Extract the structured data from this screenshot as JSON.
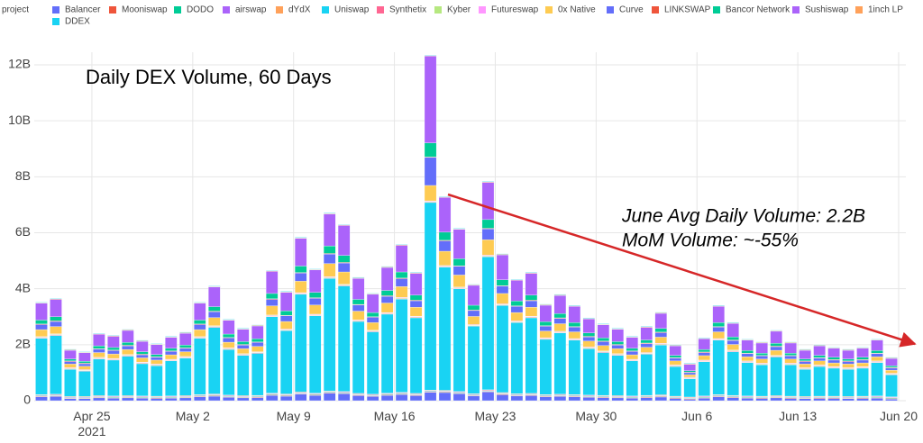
{
  "chart_data": {
    "type": "stacked_bar",
    "title": "Daily DEX Volume, 60 Days",
    "annotations": [
      "June Avg Daily Volume: 2.2B",
      "MoM Volume: ~-55%"
    ],
    "legend_title": "project",
    "x": [
      "2021-04-21",
      "2021-04-22",
      "2021-04-23",
      "2021-04-24",
      "2021-04-25",
      "2021-04-26",
      "2021-04-27",
      "2021-04-28",
      "2021-04-29",
      "2021-04-30",
      "2021-05-01",
      "2021-05-02",
      "2021-05-03",
      "2021-05-04",
      "2021-05-05",
      "2021-05-06",
      "2021-05-07",
      "2021-05-08",
      "2021-05-09",
      "2021-05-10",
      "2021-05-11",
      "2021-05-12",
      "2021-05-13",
      "2021-05-14",
      "2021-05-15",
      "2021-05-16",
      "2021-05-17",
      "2021-05-18",
      "2021-05-19",
      "2021-05-20",
      "2021-05-21",
      "2021-05-22",
      "2021-05-23",
      "2021-05-24",
      "2021-05-25",
      "2021-05-26",
      "2021-05-27",
      "2021-05-28",
      "2021-05-29",
      "2021-05-30",
      "2021-05-31",
      "2021-06-01",
      "2021-06-02",
      "2021-06-03",
      "2021-06-04",
      "2021-06-05",
      "2021-06-06",
      "2021-06-07",
      "2021-06-08",
      "2021-06-09",
      "2021-06-10",
      "2021-06-11",
      "2021-06-12",
      "2021-06-13",
      "2021-06-14",
      "2021-06-15",
      "2021-06-16",
      "2021-06-17",
      "2021-06-18",
      "2021-06-19"
    ],
    "xlim": [
      "2021-04-21",
      "2021-06-20"
    ],
    "xticks": [
      {
        "value": "2021-04-25",
        "label": "Apr 25\n2021"
      },
      {
        "value": "2021-05-02",
        "label": "May 2"
      },
      {
        "value": "2021-05-09",
        "label": "May 9"
      },
      {
        "value": "2021-05-16",
        "label": "May 16"
      },
      {
        "value": "2021-05-23",
        "label": "May 23"
      },
      {
        "value": "2021-05-30",
        "label": "May 30"
      },
      {
        "value": "2021-06-06",
        "label": "Jun 6"
      },
      {
        "value": "2021-06-13",
        "label": "Jun 13"
      },
      {
        "value": "2021-06-20",
        "label": "Jun 20"
      }
    ],
    "ylim": [
      0,
      12.45
    ],
    "yticks": [
      0,
      {
        "value": 2,
        "label": "2B"
      },
      {
        "value": 4,
        "label": "4B"
      },
      {
        "value": 6,
        "label": "6B"
      },
      {
        "value": 8,
        "label": "8B"
      },
      {
        "value": 10,
        "label": "10B"
      },
      {
        "value": 12,
        "label": "12B"
      }
    ],
    "grid": true,
    "series": [
      {
        "name": "Balancer",
        "color": "#636efa",
        "values": [
          0.14,
          0.15,
          0.07,
          0.07,
          0.1,
          0.09,
          0.1,
          0.09,
          0.08,
          0.09,
          0.1,
          0.14,
          0.16,
          0.12,
          0.1,
          0.11,
          0.19,
          0.16,
          0.23,
          0.19,
          0.27,
          0.25,
          0.18,
          0.15,
          0.19,
          0.22,
          0.18,
          0.3,
          0.29,
          0.25,
          0.17,
          0.31,
          0.21,
          0.17,
          0.18,
          0.14,
          0.15,
          0.14,
          0.12,
          0.11,
          0.1,
          0.09,
          0.11,
          0.13,
          0.08,
          0.05,
          0.09,
          0.14,
          0.11,
          0.09,
          0.08,
          0.1,
          0.08,
          0.07,
          0.08,
          0.08,
          0.07,
          0.08,
          0.09,
          0.06
        ]
      },
      {
        "name": "Mooniswap",
        "color": "#EF553B",
        "values": [
          0.02,
          0.02,
          0.02,
          0.02,
          0.02,
          0.02,
          0.02,
          0.02,
          0.02,
          0.02,
          0.02,
          0.02,
          0.02,
          0.02,
          0.02,
          0.02,
          0.02,
          0.02,
          0.02,
          0.02,
          0.02,
          0.02,
          0.02,
          0.02,
          0.02,
          0.02,
          0.02,
          0.02,
          0.02,
          0.02,
          0.02,
          0.02,
          0.02,
          0.02,
          0.02,
          0.02,
          0.02,
          0.02,
          0.02,
          0.02,
          0.02,
          0.02,
          0.02,
          0.02,
          0.02,
          0.02,
          0.02,
          0.02,
          0.02,
          0.02,
          0.02,
          0.02,
          0.02,
          0.02,
          0.02,
          0.02,
          0.02,
          0.02,
          0.02,
          0.02
        ]
      },
      {
        "name": "DODO",
        "color": "#00cc96",
        "values": [
          0.02,
          0.02,
          0.02,
          0.02,
          0.02,
          0.02,
          0.02,
          0.02,
          0.02,
          0.02,
          0.02,
          0.02,
          0.02,
          0.02,
          0.02,
          0.02,
          0.02,
          0.02,
          0.02,
          0.02,
          0.02,
          0.02,
          0.02,
          0.02,
          0.02,
          0.02,
          0.02,
          0.02,
          0.02,
          0.02,
          0.02,
          0.02,
          0.02,
          0.02,
          0.02,
          0.02,
          0.02,
          0.02,
          0.02,
          0.02,
          0.02,
          0.02,
          0.02,
          0.02,
          0.02,
          0.02,
          0.02,
          0.02,
          0.02,
          0.02,
          0.02,
          0.02,
          0.02,
          0.02,
          0.02,
          0.02,
          0.02,
          0.02,
          0.02,
          0.02
        ]
      },
      {
        "name": "airswap",
        "color": "#ab63fa",
        "values": [
          0.02,
          0.02,
          0.02,
          0.02,
          0.02,
          0.02,
          0.02,
          0.02,
          0.02,
          0.02,
          0.02,
          0.02,
          0.02,
          0.02,
          0.02,
          0.02,
          0.02,
          0.02,
          0.02,
          0.02,
          0.02,
          0.02,
          0.02,
          0.02,
          0.02,
          0.02,
          0.02,
          0.02,
          0.02,
          0.02,
          0.02,
          0.02,
          0.02,
          0.02,
          0.02,
          0.02,
          0.02,
          0.02,
          0.02,
          0.02,
          0.02,
          0.02,
          0.02,
          0.02,
          0.02,
          0.02,
          0.02,
          0.02,
          0.02,
          0.02,
          0.02,
          0.02,
          0.02,
          0.02,
          0.02,
          0.02,
          0.02,
          0.02,
          0.02,
          0.02
        ]
      },
      {
        "name": "dYdX",
        "color": "#FFA15A",
        "values": [
          0.02,
          0.02,
          0.02,
          0.02,
          0.02,
          0.02,
          0.02,
          0.02,
          0.02,
          0.02,
          0.02,
          0.02,
          0.02,
          0.02,
          0.02,
          0.02,
          0.02,
          0.02,
          0.02,
          0.02,
          0.02,
          0.02,
          0.02,
          0.02,
          0.02,
          0.02,
          0.02,
          0.02,
          0.02,
          0.02,
          0.02,
          0.02,
          0.02,
          0.02,
          0.02,
          0.02,
          0.02,
          0.02,
          0.02,
          0.02,
          0.02,
          0.02,
          0.02,
          0.02,
          0.02,
          0.02,
          0.02,
          0.02,
          0.02,
          0.02,
          0.02,
          0.02,
          0.02,
          0.02,
          0.02,
          0.02,
          0.02,
          0.02,
          0.02,
          0.02
        ]
      },
      {
        "name": "Uniswap",
        "color": "#19d3f3",
        "values": [
          2.01,
          2.1,
          0.97,
          0.9,
          1.31,
          1.28,
          1.41,
          1.15,
          1.09,
          1.25,
          1.34,
          2.01,
          2.38,
          1.63,
          1.44,
          1.5,
          2.73,
          2.26,
          3.49,
          2.76,
          4.02,
          3.77,
          2.57,
          2.23,
          2.82,
          3.33,
          2.7,
          6.7,
          4.4,
          3.67,
          2.41,
          4.75,
          3.11,
          2.54,
          2.7,
          1.97,
          2.19,
          1.94,
          1.66,
          1.53,
          1.44,
          1.25,
          1.47,
          1.78,
          1.06,
          0.65,
          1.22,
          1.94,
          1.56,
          1.19,
          1.12,
          1.38,
          1.12,
          0.97,
          1.06,
          1.0,
          0.97,
          1.0,
          1.19,
          0.78
        ]
      },
      {
        "name": "Synthetix",
        "color": "#FF6692",
        "values": [
          0.02,
          0.02,
          0.02,
          0.02,
          0.02,
          0.02,
          0.02,
          0.02,
          0.02,
          0.02,
          0.02,
          0.02,
          0.02,
          0.02,
          0.02,
          0.02,
          0.02,
          0.02,
          0.02,
          0.02,
          0.02,
          0.02,
          0.02,
          0.02,
          0.02,
          0.02,
          0.02,
          0.02,
          0.02,
          0.02,
          0.02,
          0.02,
          0.02,
          0.02,
          0.02,
          0.02,
          0.02,
          0.02,
          0.02,
          0.02,
          0.02,
          0.02,
          0.02,
          0.02,
          0.02,
          0.02,
          0.02,
          0.02,
          0.02,
          0.02,
          0.02,
          0.02,
          0.02,
          0.02,
          0.02,
          0.02,
          0.02,
          0.02,
          0.02,
          0.02
        ]
      },
      {
        "name": "Kyber",
        "color": "#B6E880",
        "values": [
          0.02,
          0.02,
          0.02,
          0.02,
          0.02,
          0.02,
          0.02,
          0.02,
          0.02,
          0.02,
          0.02,
          0.02,
          0.02,
          0.02,
          0.02,
          0.02,
          0.02,
          0.02,
          0.02,
          0.02,
          0.02,
          0.02,
          0.02,
          0.02,
          0.02,
          0.02,
          0.02,
          0.02,
          0.02,
          0.02,
          0.02,
          0.02,
          0.02,
          0.02,
          0.02,
          0.02,
          0.02,
          0.02,
          0.02,
          0.02,
          0.02,
          0.02,
          0.02,
          0.02,
          0.02,
          0.02,
          0.02,
          0.02,
          0.02,
          0.02,
          0.02,
          0.02,
          0.02,
          0.02,
          0.02,
          0.02,
          0.02,
          0.02,
          0.02,
          0.02
        ]
      },
      {
        "name": "Futureswap",
        "color": "#FF97FF",
        "values": [
          0.02,
          0.02,
          0.02,
          0.02,
          0.02,
          0.02,
          0.02,
          0.02,
          0.02,
          0.02,
          0.02,
          0.02,
          0.02,
          0.02,
          0.02,
          0.02,
          0.02,
          0.02,
          0.02,
          0.02,
          0.02,
          0.02,
          0.02,
          0.02,
          0.02,
          0.02,
          0.02,
          0.02,
          0.02,
          0.02,
          0.02,
          0.02,
          0.02,
          0.02,
          0.02,
          0.02,
          0.02,
          0.02,
          0.02,
          0.02,
          0.02,
          0.02,
          0.02,
          0.02,
          0.02,
          0.02,
          0.02,
          0.02,
          0.02,
          0.02,
          0.02,
          0.02,
          0.02,
          0.02,
          0.02,
          0.02,
          0.02,
          0.02,
          0.02,
          0.02
        ]
      },
      {
        "name": "0x Native",
        "color": "#FECB52",
        "values": [
          0.25,
          0.26,
          0.13,
          0.12,
          0.17,
          0.16,
          0.18,
          0.15,
          0.14,
          0.16,
          0.17,
          0.25,
          0.29,
          0.2,
          0.18,
          0.19,
          0.33,
          0.27,
          0.41,
          0.33,
          0.47,
          0.44,
          0.31,
          0.27,
          0.34,
          0.39,
          0.32,
          0.55,
          0.51,
          0.43,
          0.29,
          0.55,
          0.37,
          0.3,
          0.32,
          0.24,
          0.27,
          0.24,
          0.21,
          0.19,
          0.18,
          0.16,
          0.19,
          0.22,
          0.14,
          0.09,
          0.16,
          0.24,
          0.2,
          0.15,
          0.15,
          0.18,
          0.15,
          0.13,
          0.14,
          0.13,
          0.13,
          0.13,
          0.15,
          0.11
        ]
      },
      {
        "name": "Curve",
        "color": "#636efa",
        "values": [
          0.18,
          0.18,
          0.09,
          0.09,
          0.12,
          0.12,
          0.13,
          0.11,
          0.1,
          0.12,
          0.12,
          0.18,
          0.21,
          0.15,
          0.13,
          0.14,
          0.23,
          0.2,
          0.29,
          0.24,
          0.34,
          0.32,
          0.22,
          0.19,
          0.24,
          0.28,
          0.23,
          1.0,
          0.37,
          0.31,
          0.21,
          0.39,
          0.26,
          0.22,
          0.23,
          0.17,
          0.19,
          0.17,
          0.15,
          0.14,
          0.13,
          0.12,
          0.13,
          0.16,
          0.1,
          0.07,
          0.11,
          0.17,
          0.14,
          0.11,
          0.11,
          0.13,
          0.11,
          0.09,
          0.1,
          0.1,
          0.09,
          0.1,
          0.11,
          0.08
        ]
      },
      {
        "name": "LINKSWAP",
        "color": "#EF553B",
        "values": [
          0.02,
          0.02,
          0.02,
          0.02,
          0.02,
          0.02,
          0.02,
          0.02,
          0.02,
          0.02,
          0.02,
          0.02,
          0.02,
          0.02,
          0.02,
          0.02,
          0.02,
          0.02,
          0.02,
          0.02,
          0.02,
          0.02,
          0.02,
          0.02,
          0.02,
          0.02,
          0.02,
          0.02,
          0.02,
          0.02,
          0.02,
          0.02,
          0.02,
          0.02,
          0.02,
          0.02,
          0.02,
          0.02,
          0.02,
          0.02,
          0.02,
          0.02,
          0.02,
          0.02,
          0.02,
          0.02,
          0.02,
          0.02,
          0.02,
          0.02,
          0.02,
          0.02,
          0.02,
          0.02,
          0.02,
          0.02,
          0.02,
          0.02,
          0.02,
          0.02
        ]
      },
      {
        "name": "Bancor Network",
        "color": "#00cc96",
        "values": [
          0.14,
          0.15,
          0.07,
          0.07,
          0.1,
          0.09,
          0.1,
          0.09,
          0.08,
          0.09,
          0.1,
          0.14,
          0.16,
          0.12,
          0.1,
          0.11,
          0.19,
          0.16,
          0.23,
          0.19,
          0.27,
          0.25,
          0.18,
          0.15,
          0.19,
          0.22,
          0.18,
          0.5,
          0.29,
          0.25,
          0.17,
          0.31,
          0.21,
          0.17,
          0.18,
          0.14,
          0.15,
          0.14,
          0.12,
          0.11,
          0.1,
          0.09,
          0.11,
          0.13,
          0.08,
          0.05,
          0.09,
          0.14,
          0.11,
          0.09,
          0.08,
          0.1,
          0.08,
          0.07,
          0.08,
          0.08,
          0.07,
          0.08,
          0.09,
          0.06
        ]
      },
      {
        "name": "Sushiswap",
        "color": "#ab63fa",
        "values": [
          0.6,
          0.62,
          0.31,
          0.3,
          0.41,
          0.4,
          0.43,
          0.37,
          0.35,
          0.39,
          0.42,
          0.6,
          0.7,
          0.49,
          0.44,
          0.46,
          0.79,
          0.66,
          0.99,
          0.8,
          1.14,
          1.07,
          0.75,
          0.65,
          0.82,
          0.95,
          0.78,
          3.1,
          1.24,
          1.05,
          0.71,
          1.33,
          0.89,
          0.74,
          0.78,
          0.59,
          0.65,
          0.58,
          0.5,
          0.47,
          0.44,
          0.39,
          0.45,
          0.54,
          0.34,
          0.23,
          0.38,
          0.58,
          0.48,
          0.37,
          0.36,
          0.43,
          0.36,
          0.31,
          0.34,
          0.32,
          0.31,
          0.32,
          0.37,
          0.26
        ]
      },
      {
        "name": "1inch LP",
        "color": "#FFA15A",
        "values": [
          0.02,
          0.02,
          0.02,
          0.02,
          0.02,
          0.02,
          0.02,
          0.02,
          0.02,
          0.02,
          0.02,
          0.02,
          0.02,
          0.02,
          0.02,
          0.02,
          0.02,
          0.02,
          0.02,
          0.02,
          0.02,
          0.02,
          0.02,
          0.02,
          0.02,
          0.02,
          0.02,
          0.02,
          0.02,
          0.02,
          0.02,
          0.02,
          0.02,
          0.02,
          0.02,
          0.02,
          0.02,
          0.02,
          0.02,
          0.02,
          0.02,
          0.02,
          0.02,
          0.02,
          0.02,
          0.02,
          0.02,
          0.02,
          0.02,
          0.02,
          0.02,
          0.02,
          0.02,
          0.02,
          0.02,
          0.02,
          0.02,
          0.02,
          0.02,
          0.02
        ]
      },
      {
        "name": "DDEX",
        "color": "#19d3f3",
        "values": [
          0.02,
          0.02,
          0.02,
          0.02,
          0.02,
          0.02,
          0.02,
          0.02,
          0.02,
          0.02,
          0.02,
          0.02,
          0.02,
          0.02,
          0.02,
          0.02,
          0.02,
          0.02,
          0.02,
          0.02,
          0.02,
          0.02,
          0.02,
          0.02,
          0.02,
          0.02,
          0.02,
          0.02,
          0.02,
          0.02,
          0.02,
          0.02,
          0.02,
          0.02,
          0.02,
          0.02,
          0.02,
          0.02,
          0.02,
          0.02,
          0.02,
          0.02,
          0.02,
          0.02,
          0.02,
          0.02,
          0.02,
          0.02,
          0.02,
          0.02,
          0.02,
          0.02,
          0.02,
          0.02,
          0.02,
          0.02,
          0.02,
          0.02,
          0.02,
          0.02
        ]
      }
    ]
  }
}
